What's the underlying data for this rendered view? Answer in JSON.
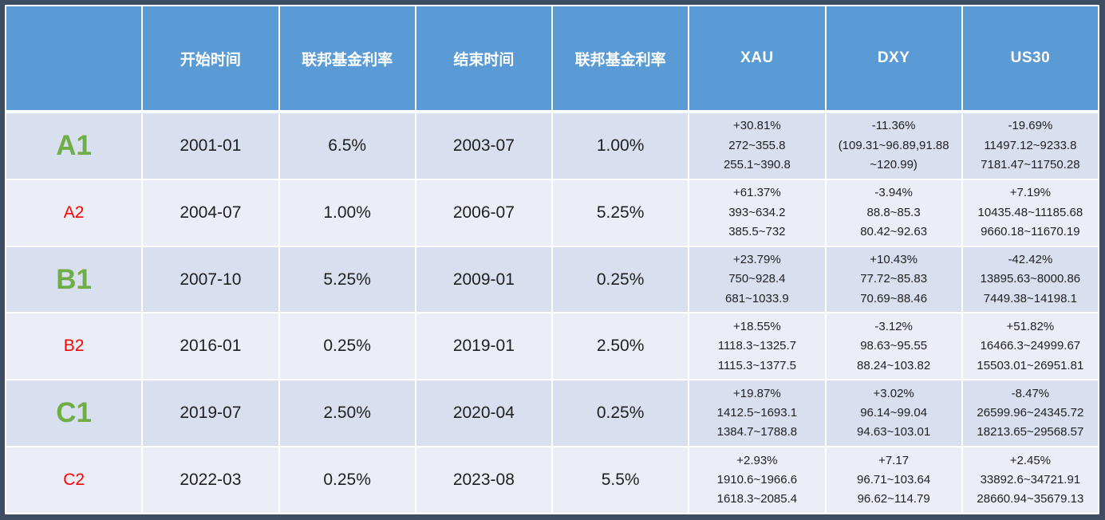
{
  "colors": {
    "frame": "#3E4D63",
    "header_bg": "#5B9BD5",
    "header_text": "#FFFFFF",
    "row_odd_bg": "#D8DFEF",
    "row_even_bg": "#EBEEF7",
    "grid_line": "#FFFFFF",
    "label_major": "#6FAD47",
    "label_minor": "#FF0000",
    "cell_text": "#1F1F1F"
  },
  "chart_data": {
    "type": "table",
    "columns": [
      "",
      "开始时间",
      "联邦基金利率",
      "结束时间",
      "联邦基金利率",
      "XAU",
      "DXY",
      "US30"
    ],
    "rows": [
      {
        "label": "A1",
        "start_time": "2001-01",
        "start_rate": "6.5%",
        "end_time": "2003-07",
        "end_rate": "1.00%",
        "xau": [
          "+30.81%",
          "272~355.8",
          "255.1~390.8"
        ],
        "dxy": [
          "-11.36%",
          "(109.31~96.89,91.88",
          "~120.99)"
        ],
        "us30": [
          "-19.69%",
          "11497.12~9233.8",
          "7181.47~11750.28"
        ]
      },
      {
        "label": "A2",
        "start_time": "2004-07",
        "start_rate": "1.00%",
        "end_time": "2006-07",
        "end_rate": "5.25%",
        "xau": [
          "+61.37%",
          "393~634.2",
          "385.5~732"
        ],
        "dxy": [
          "-3.94%",
          "88.8~85.3",
          "80.42~92.63"
        ],
        "us30": [
          "+7.19%",
          "10435.48~11185.68",
          "9660.18~11670.19"
        ]
      },
      {
        "label": "B1",
        "start_time": "2007-10",
        "start_rate": "5.25%",
        "end_time": "2009-01",
        "end_rate": "0.25%",
        "xau": [
          "+23.79%",
          "750~928.4",
          "681~1033.9"
        ],
        "dxy": [
          "+10.43%",
          "77.72~85.83",
          "70.69~88.46"
        ],
        "us30": [
          "-42.42%",
          "13895.63~8000.86",
          "7449.38~14198.1"
        ]
      },
      {
        "label": "B2",
        "start_time": "2016-01",
        "start_rate": "0.25%",
        "end_time": "2019-01",
        "end_rate": "2.50%",
        "xau": [
          "+18.55%",
          "1118.3~1325.7",
          "1115.3~1377.5"
        ],
        "dxy": [
          "-3.12%",
          "98.63~95.55",
          "88.24~103.82"
        ],
        "us30": [
          "+51.82%",
          "16466.3~24999.67",
          "15503.01~26951.81"
        ]
      },
      {
        "label": "C1",
        "start_time": "2019-07",
        "start_rate": "2.50%",
        "end_time": "2020-04",
        "end_rate": "0.25%",
        "xau": [
          "+19.87%",
          "1412.5~1693.1",
          "1384.7~1788.8"
        ],
        "dxy": [
          "+3.02%",
          "96.14~99.04",
          "94.63~103.01"
        ],
        "us30": [
          "-8.47%",
          "26599.96~24345.72",
          "18213.65~29568.57"
        ]
      },
      {
        "label": "C2",
        "start_time": "2022-03",
        "start_rate": "0.25%",
        "end_time": "2023-08",
        "end_rate": "5.5%",
        "xau": [
          "+2.93%",
          "1910.6~1966.6",
          "1618.3~2085.4"
        ],
        "dxy": [
          "+7.17",
          "96.71~103.64",
          "96.62~114.79"
        ],
        "us30": [
          "+2.45%",
          "33892.6~34721.91",
          "28660.94~35679.13"
        ]
      }
    ]
  }
}
